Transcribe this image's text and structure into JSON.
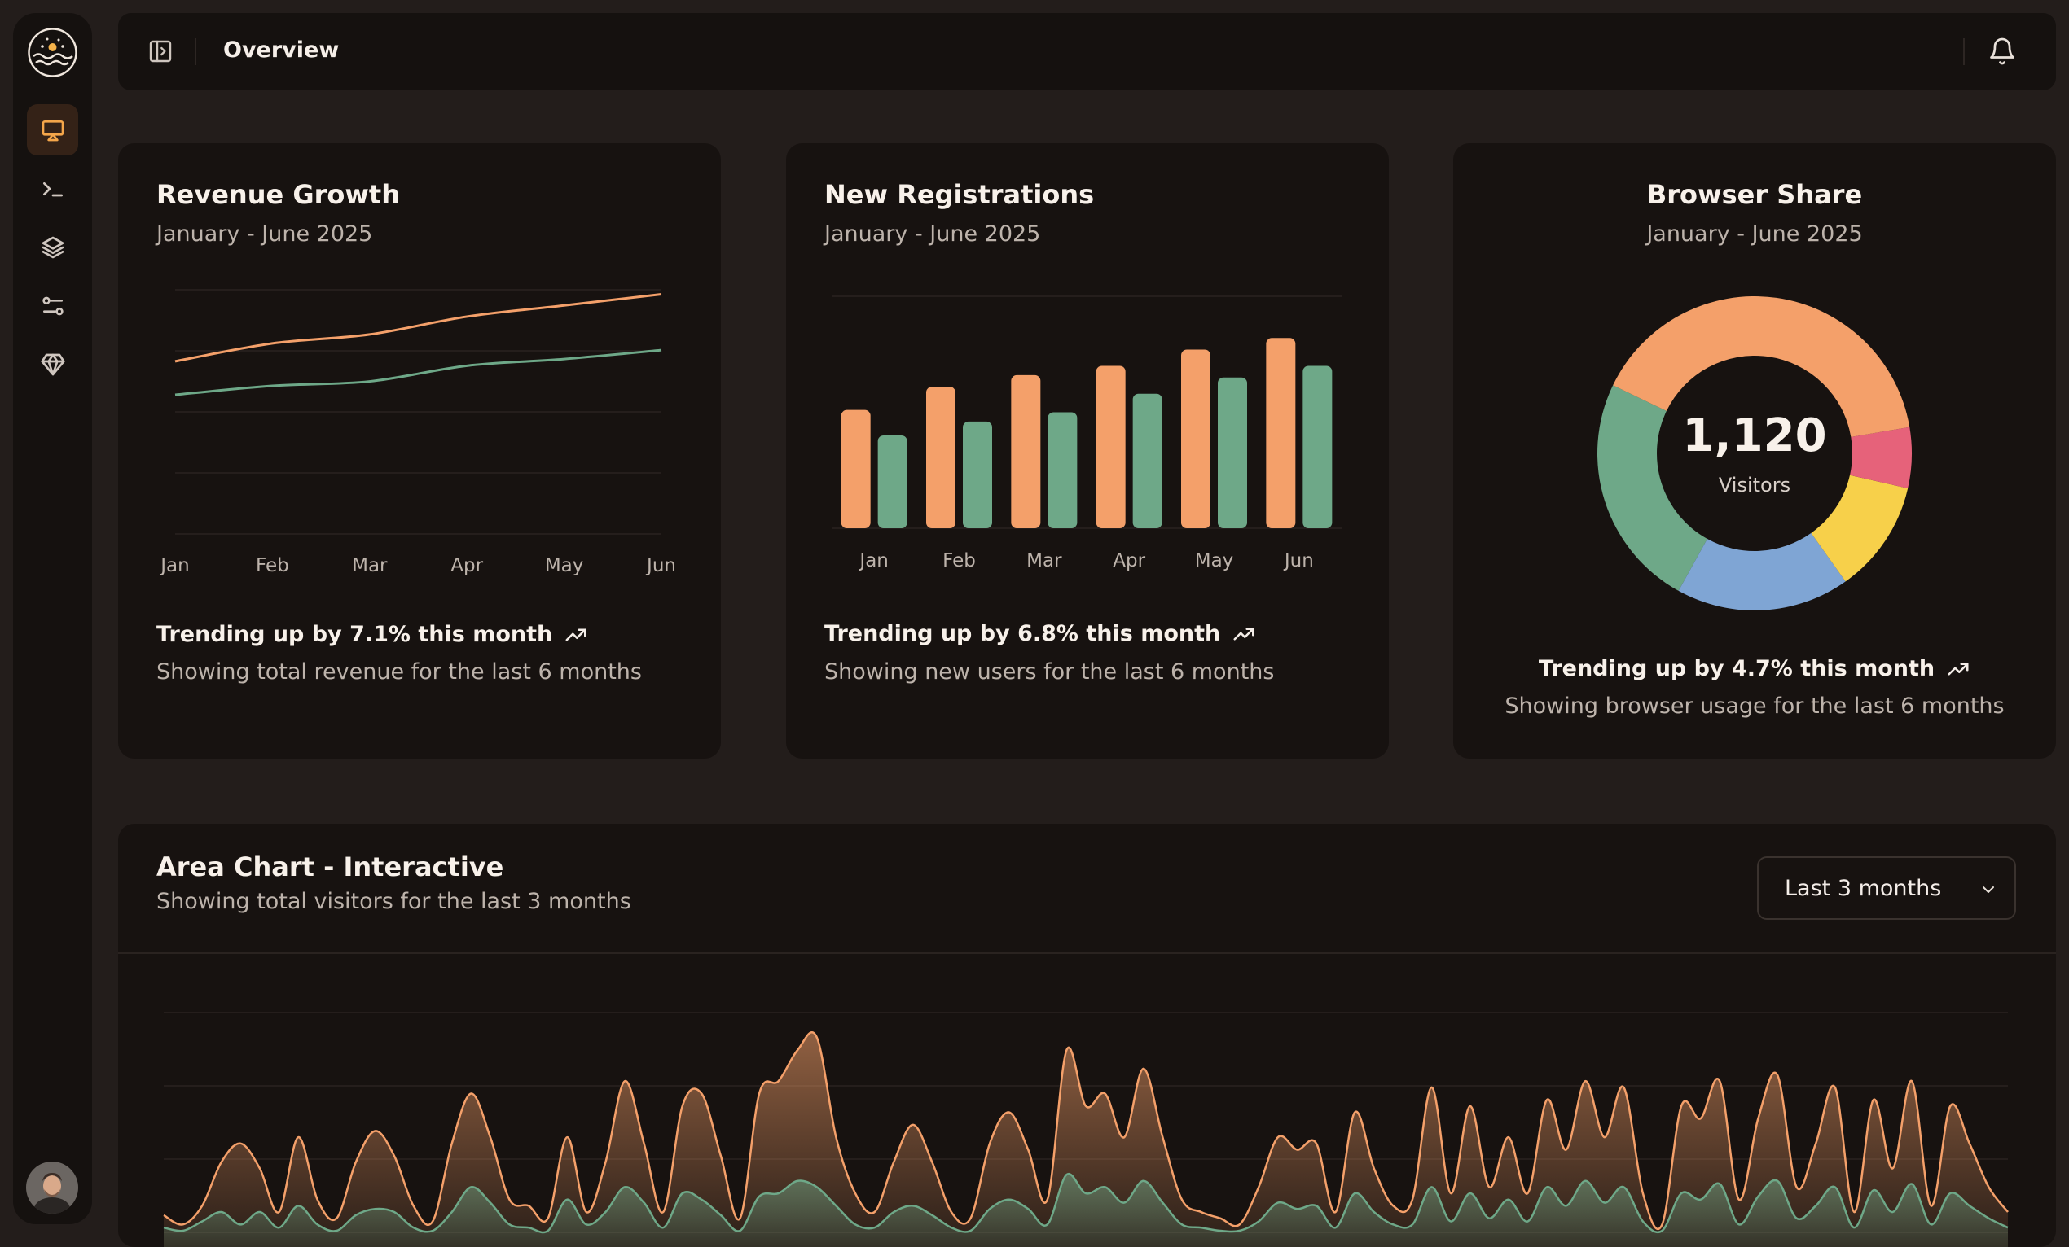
{
  "header": {
    "title": "Overview"
  },
  "sidebar": {
    "items": [
      {
        "name": "presentation",
        "active": true
      },
      {
        "name": "terminal"
      },
      {
        "name": "layers"
      },
      {
        "name": "settings-sliders"
      },
      {
        "name": "gem"
      }
    ]
  },
  "cards": {
    "revenue": {
      "title": "Revenue Growth",
      "subtitle": "January - June 2025",
      "trend": "Trending up by 7.1% this month",
      "footer": "Showing total revenue for the last 6 months"
    },
    "registrations": {
      "title": "New Registrations",
      "subtitle": "January - June 2025",
      "trend": "Trending up by 6.8% this month",
      "footer": "Showing new users for the last 6 months"
    },
    "browser": {
      "title": "Browser Share",
      "subtitle": "January - June 2025",
      "center_value": "1,120",
      "center_label": "Visitors",
      "trend": "Trending up by 4.7% this month",
      "footer": "Showing browser usage for the last 6 months"
    }
  },
  "area": {
    "title": "Area Chart - Interactive",
    "subtitle": "Showing total visitors for the last 3 months",
    "range_select": "Last 3 months"
  },
  "colors": {
    "orange": "#f4a06a",
    "green": "#6ea888",
    "blue": "#7fa5d4",
    "yellow": "#f7d04a",
    "pink": "#e6627a"
  },
  "chart_data": [
    {
      "type": "line",
      "title": "Revenue Growth",
      "categories": [
        "Jan",
        "Feb",
        "Mar",
        "Apr",
        "May",
        "Jun"
      ],
      "series": [
        {
          "name": "orange",
          "values": [
            78,
            86,
            90,
            98,
            103,
            108
          ]
        },
        {
          "name": "green",
          "values": [
            63,
            67,
            69,
            76,
            79,
            83
          ]
        }
      ],
      "ylim": [
        0,
        110
      ]
    },
    {
      "type": "bar",
      "title": "New Registrations",
      "categories": [
        "Jan",
        "Feb",
        "Mar",
        "Apr",
        "May",
        "Jun"
      ],
      "series": [
        {
          "name": "orange",
          "values": [
            51,
            61,
            66,
            70,
            77,
            82
          ]
        },
        {
          "name": "green",
          "values": [
            40,
            46,
            50,
            58,
            65,
            70
          ]
        }
      ],
      "ylim": [
        0,
        100
      ]
    },
    {
      "type": "pie",
      "title": "Browser Share",
      "labels": [
        "orange",
        "pink",
        "yellow",
        "blue",
        "green"
      ],
      "values": [
        450,
        70,
        130,
        200,
        270
      ]
    },
    {
      "type": "area",
      "title": "Area Chart - Interactive",
      "series": [
        {
          "name": "orange",
          "values": [
            5,
            2,
            8,
            22,
            28,
            20,
            6,
            30,
            10,
            4,
            22,
            32,
            24,
            8,
            3,
            28,
            44,
            30,
            10,
            8,
            4,
            30,
            6,
            22,
            48,
            28,
            6,
            40,
            44,
            24,
            4,
            44,
            48,
            58,
            62,
            30,
            12,
            6,
            22,
            34,
            22,
            6,
            4,
            28,
            38,
            26,
            10,
            58,
            40,
            44,
            30,
            52,
            30,
            10,
            6,
            4,
            2,
            14,
            30,
            26,
            28,
            6,
            38,
            20,
            8,
            10,
            46,
            12,
            40,
            14,
            30,
            12,
            42,
            26,
            48,
            30,
            46,
            12,
            2,
            40,
            36,
            48,
            10,
            36,
            50,
            14,
            28,
            46,
            6,
            42,
            20,
            48,
            8,
            40,
            28,
            14,
            6
          ]
        },
        {
          "name": "green",
          "values": [
            1,
            0,
            3,
            6,
            2,
            6,
            1,
            8,
            2,
            0,
            5,
            7,
            6,
            1,
            0,
            6,
            14,
            9,
            2,
            1,
            0,
            10,
            2,
            6,
            14,
            9,
            1,
            12,
            10,
            5,
            0,
            11,
            12,
            16,
            14,
            8,
            2,
            1,
            6,
            8,
            5,
            1,
            0,
            7,
            10,
            7,
            2,
            18,
            12,
            14,
            9,
            16,
            9,
            2,
            1,
            0,
            0,
            3,
            9,
            7,
            8,
            1,
            12,
            6,
            2,
            2,
            14,
            3,
            12,
            4,
            10,
            3,
            14,
            8,
            16,
            9,
            14,
            3,
            0,
            12,
            10,
            15,
            2,
            11,
            16,
            4,
            8,
            14,
            1,
            13,
            6,
            15,
            2,
            12,
            8,
            4,
            1
          ]
        }
      ],
      "ylim": [
        0,
        70
      ]
    }
  ]
}
